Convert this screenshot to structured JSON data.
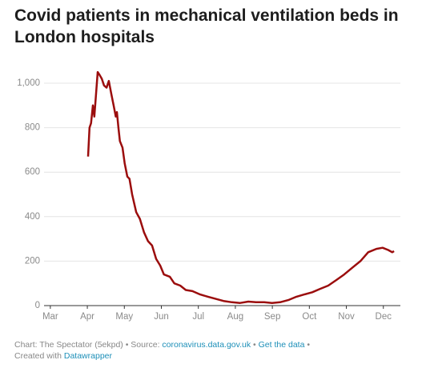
{
  "chart_data": {
    "type": "line",
    "title": "Covid patients in mechanical ventilation beds in London hospitals",
    "xlim": [
      -0.17,
      9.46
    ],
    "xticks": [
      {
        "value": 0,
        "label": "Mar"
      },
      {
        "value": 1,
        "label": "Apr"
      },
      {
        "value": 2,
        "label": "May"
      },
      {
        "value": 3,
        "label": "Jun"
      },
      {
        "value": 4,
        "label": "Jul"
      },
      {
        "value": 5,
        "label": "Aug"
      },
      {
        "value": 6,
        "label": "Sep"
      },
      {
        "value": 7,
        "label": "Oct"
      },
      {
        "value": 8,
        "label": "Nov"
      },
      {
        "value": 9,
        "label": "Dec"
      }
    ],
    "ylim": [
      0,
      1000
    ],
    "yticks": [
      0,
      200,
      400,
      600,
      800,
      {
        "value": 1000,
        "label": "1,000"
      }
    ],
    "grid": true,
    "color": "#9b0d0d",
    "x": [
      1.02,
      1.06,
      1.1,
      1.15,
      1.19,
      1.23,
      1.28,
      1.32,
      1.39,
      1.45,
      1.52,
      1.58,
      1.65,
      1.71,
      1.77,
      1.8,
      1.84,
      1.88,
      1.95,
      2.01,
      2.08,
      2.14,
      2.21,
      2.32,
      2.42,
      2.53,
      2.64,
      2.75,
      2.86,
      2.97,
      3.07,
      3.23,
      3.35,
      3.51,
      3.66,
      3.84,
      4.05,
      4.26,
      4.48,
      4.7,
      4.91,
      5.13,
      5.35,
      5.56,
      5.78,
      5.99,
      6.21,
      6.43,
      6.65,
      6.86,
      7.08,
      7.29,
      7.51,
      7.73,
      7.94,
      8.16,
      8.38,
      8.59,
      8.81,
      8.98,
      9.13,
      9.24,
      9.29
    ],
    "values": [
      670,
      800,
      820,
      900,
      850,
      940,
      1050,
      1040,
      1020,
      990,
      980,
      1010,
      950,
      900,
      850,
      870,
      800,
      740,
      710,
      640,
      580,
      570,
      500,
      420,
      390,
      330,
      290,
      270,
      210,
      180,
      140,
      130,
      100,
      90,
      70,
      65,
      50,
      40,
      30,
      20,
      15,
      12,
      18,
      15,
      15,
      12,
      15,
      25,
      40,
      50,
      60,
      75,
      90,
      115,
      140,
      170,
      200,
      240,
      255,
      260,
      250,
      240,
      245
    ]
  },
  "footer": {
    "source": "Chart: The Spectator (5ekpd) • Source: ",
    "source_link": "coronavirus.data.gov.uk",
    "sep": " • ",
    "data_link": "Get the data",
    "end": " •",
    "created": "Created with ",
    "tool_link": "Datawrapper"
  }
}
